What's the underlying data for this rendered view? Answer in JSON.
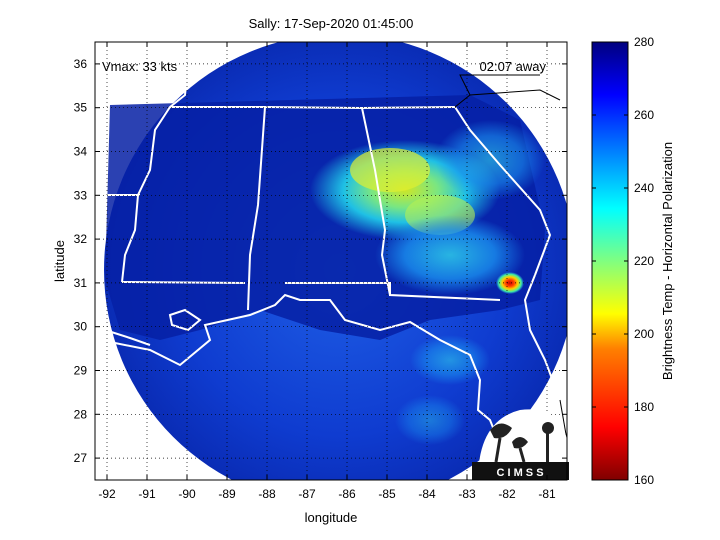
{
  "title": "Sally: 17-Sep-2020 01:45:00",
  "overlay": {
    "vmax": "Vmax: 33 kts",
    "time_away": "02:07 away"
  },
  "axes": {
    "xlabel": "longitude",
    "ylabel": "latitude",
    "xlim": [
      -92.3,
      -80.5
    ],
    "ylim": [
      26.5,
      36.5
    ],
    "xticks": [
      -92,
      -91,
      -90,
      -89,
      -88,
      -87,
      -86,
      -85,
      -84,
      -83,
      -82,
      -81
    ],
    "yticks": [
      27,
      28,
      29,
      30,
      31,
      32,
      33,
      34,
      35,
      36
    ],
    "grid": "dotted"
  },
  "colorbar": {
    "label": "Brightness Temp - Horizontal Polarization",
    "min": 160,
    "max": 280,
    "ticks": [
      160,
      180,
      200,
      220,
      240,
      260,
      280
    ],
    "colormap": "jet"
  },
  "logo": {
    "text": "C I M S S"
  },
  "colors": {
    "background_swath": "#0a2fb8",
    "deep_blue": "#05108f",
    "boundary": "#ffffff"
  }
}
